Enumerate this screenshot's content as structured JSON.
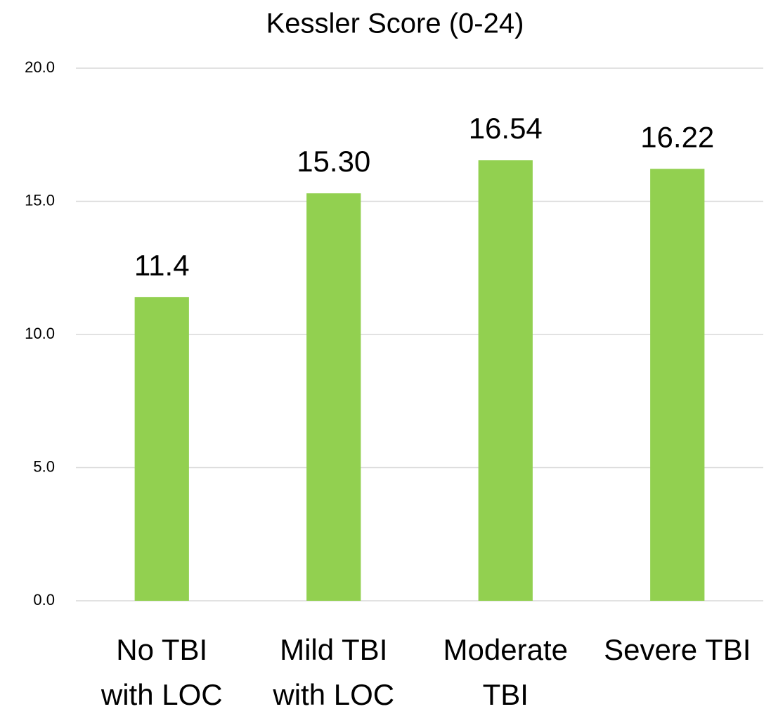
{
  "chart_data": {
    "type": "bar",
    "title": "Kessler Score (0-24)",
    "categories": [
      "No TBI\nwith LOC",
      "Mild TBI\nwith LOC",
      "Moderate\nTBI",
      "Severe TBI"
    ],
    "values": [
      11.4,
      15.3,
      16.54,
      16.22
    ],
    "value_labels": [
      "11.4",
      "15.30",
      "16.54",
      "16.22"
    ],
    "color": "#92d050",
    "ylim": [
      0,
      20
    ],
    "yticks": [
      {
        "value": 0,
        "label": "0.0"
      },
      {
        "value": 5,
        "label": "5.0"
      },
      {
        "value": 10,
        "label": "10.0"
      },
      {
        "value": 15,
        "label": "15.0"
      },
      {
        "value": 20,
        "label": "20.0"
      }
    ],
    "grid": true
  }
}
